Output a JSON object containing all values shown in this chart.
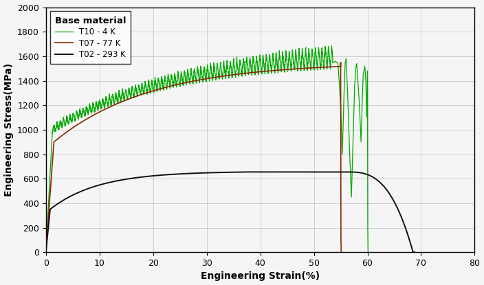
{
  "xlabel": "Engineering Strain(%)",
  "ylabel": "Engineering Stress(MPa)",
  "xlim": [
    0,
    80
  ],
  "ylim": [
    0,
    2000
  ],
  "xticks": [
    0,
    10,
    20,
    30,
    40,
    50,
    60,
    70,
    80
  ],
  "yticks": [
    0,
    200,
    400,
    600,
    800,
    1000,
    1200,
    1400,
    1600,
    1800,
    2000
  ],
  "grid": true,
  "legend_title": "Base material",
  "series": [
    {
      "label": "T02 - 293 K",
      "color": "#111111",
      "linewidth": 1.4
    },
    {
      "label": "T07 - 77 K",
      "color": "#8B2500",
      "linewidth": 1.2
    },
    {
      "label": "T10 - 4 K",
      "color": "#00aa00",
      "linewidth": 0.9
    }
  ],
  "background_color": "#f5f5f5",
  "figsize": [
    7.04,
    4.15
  ],
  "dpi": 100
}
